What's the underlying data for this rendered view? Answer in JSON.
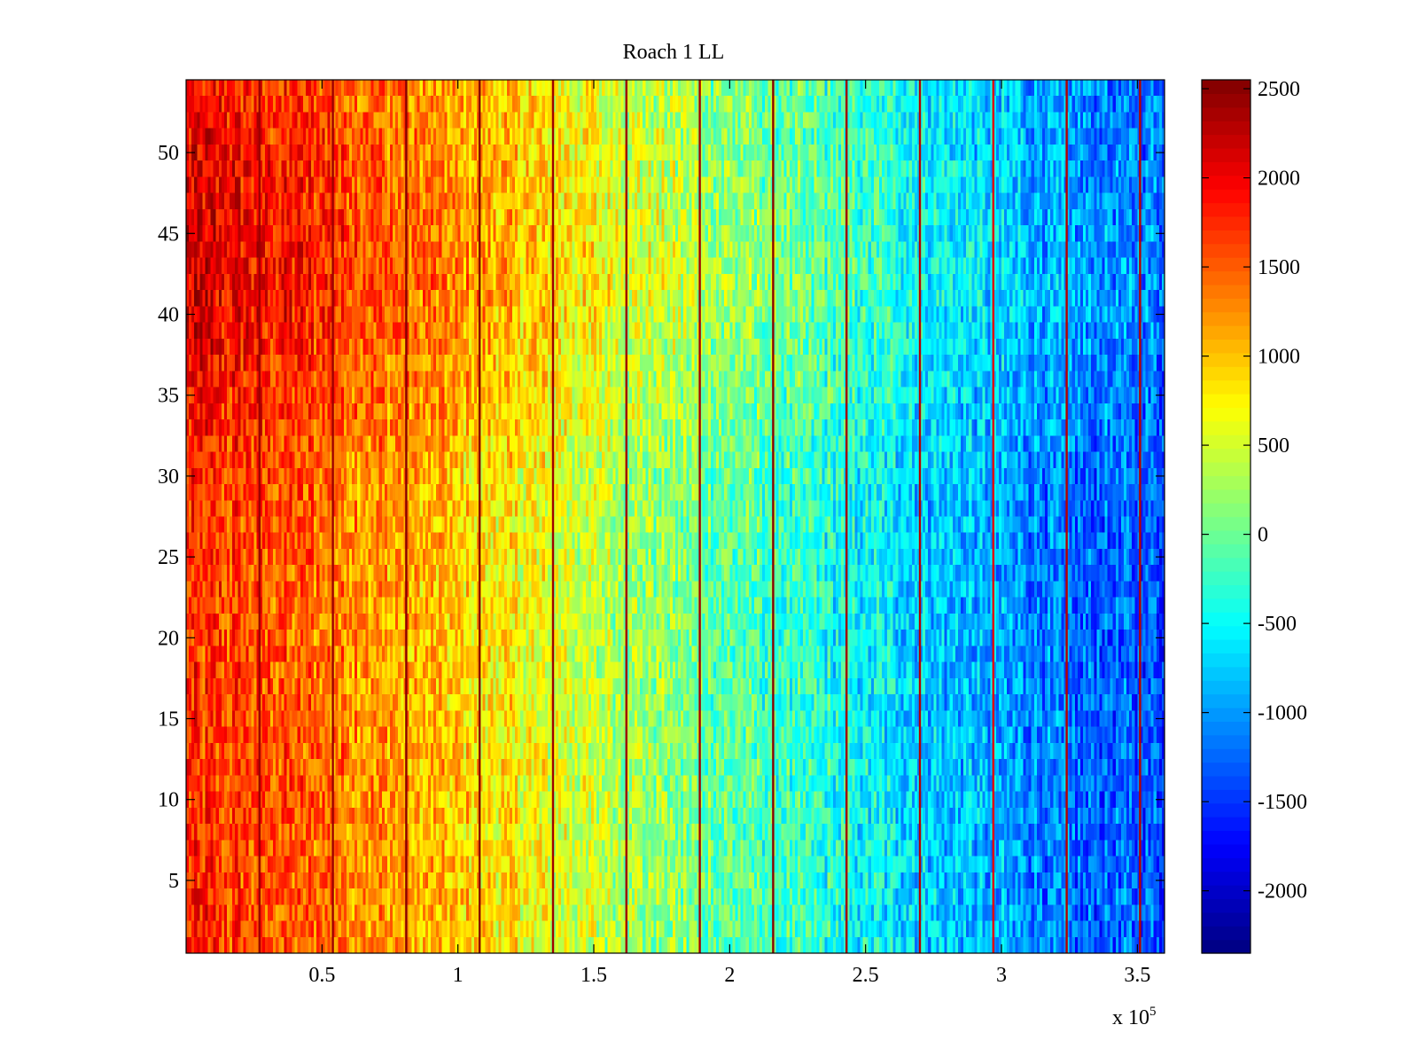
{
  "chart_data": {
    "type": "heatmap",
    "title": "Roach 1 LL",
    "xlabel": "",
    "ylabel": "",
    "x_multiplier": "x 10",
    "x_multiplier_exponent": "5",
    "xlim": [
      0,
      360000
    ],
    "ylim": [
      0.5,
      54.5
    ],
    "x_ticks": [
      {
        "value": 50000,
        "label": "0.5"
      },
      {
        "value": 100000,
        "label": "1"
      },
      {
        "value": 150000,
        "label": "1.5"
      },
      {
        "value": 200000,
        "label": "2"
      },
      {
        "value": 250000,
        "label": "2.5"
      },
      {
        "value": 300000,
        "label": "3"
      },
      {
        "value": 350000,
        "label": "3.5"
      }
    ],
    "y_ticks": [
      {
        "value": 5,
        "label": "5"
      },
      {
        "value": 10,
        "label": "10"
      },
      {
        "value": 15,
        "label": "15"
      },
      {
        "value": 20,
        "label": "20"
      },
      {
        "value": 25,
        "label": "25"
      },
      {
        "value": 30,
        "label": "30"
      },
      {
        "value": 35,
        "label": "35"
      },
      {
        "value": 40,
        "label": "40"
      },
      {
        "value": 45,
        "label": "45"
      },
      {
        "value": 50,
        "label": "50"
      }
    ],
    "colorbar": {
      "colormap": "jet",
      "range": [
        -2350,
        2550
      ],
      "ticks": [
        {
          "value": 2500,
          "label": "2500"
        },
        {
          "value": 2000,
          "label": "2000"
        },
        {
          "value": 1500,
          "label": "1500"
        },
        {
          "value": 1000,
          "label": "1000"
        },
        {
          "value": 500,
          "label": "500"
        },
        {
          "value": 0,
          "label": "0"
        },
        {
          "value": -500,
          "label": "-500"
        },
        {
          "value": -1000,
          "label": "-1000"
        },
        {
          "value": -1500,
          "label": "-1500"
        },
        {
          "value": -2000,
          "label": "-2000"
        }
      ]
    },
    "rows": 54,
    "columns": 360,
    "trend_x": [
      0,
      25000,
      50000,
      75000,
      100000,
      150000,
      200000,
      250000,
      300000,
      330000,
      360000
    ],
    "trend_value": [
      1750,
      1600,
      1450,
      1200,
      950,
      450,
      -50,
      -500,
      -950,
      -1250,
      -1300
    ],
    "row_effect_rows": [
      1,
      10,
      20,
      30,
      34,
      38,
      42,
      46,
      50,
      54
    ],
    "row_effect_value": [
      0,
      0,
      -60,
      0,
      150,
      250,
      380,
      300,
      250,
      200
    ],
    "noise_amplitude": 450,
    "stripe_x": [
      27000,
      54000,
      81000,
      108000,
      135000,
      162000,
      189000,
      216000,
      243000,
      270000,
      297000,
      324000,
      351000
    ],
    "stripe_value": [
      2400,
      2400,
      2500,
      2500,
      2400,
      2400,
      2400,
      2500,
      2400,
      2300,
      2100,
      2300,
      2300
    ]
  }
}
